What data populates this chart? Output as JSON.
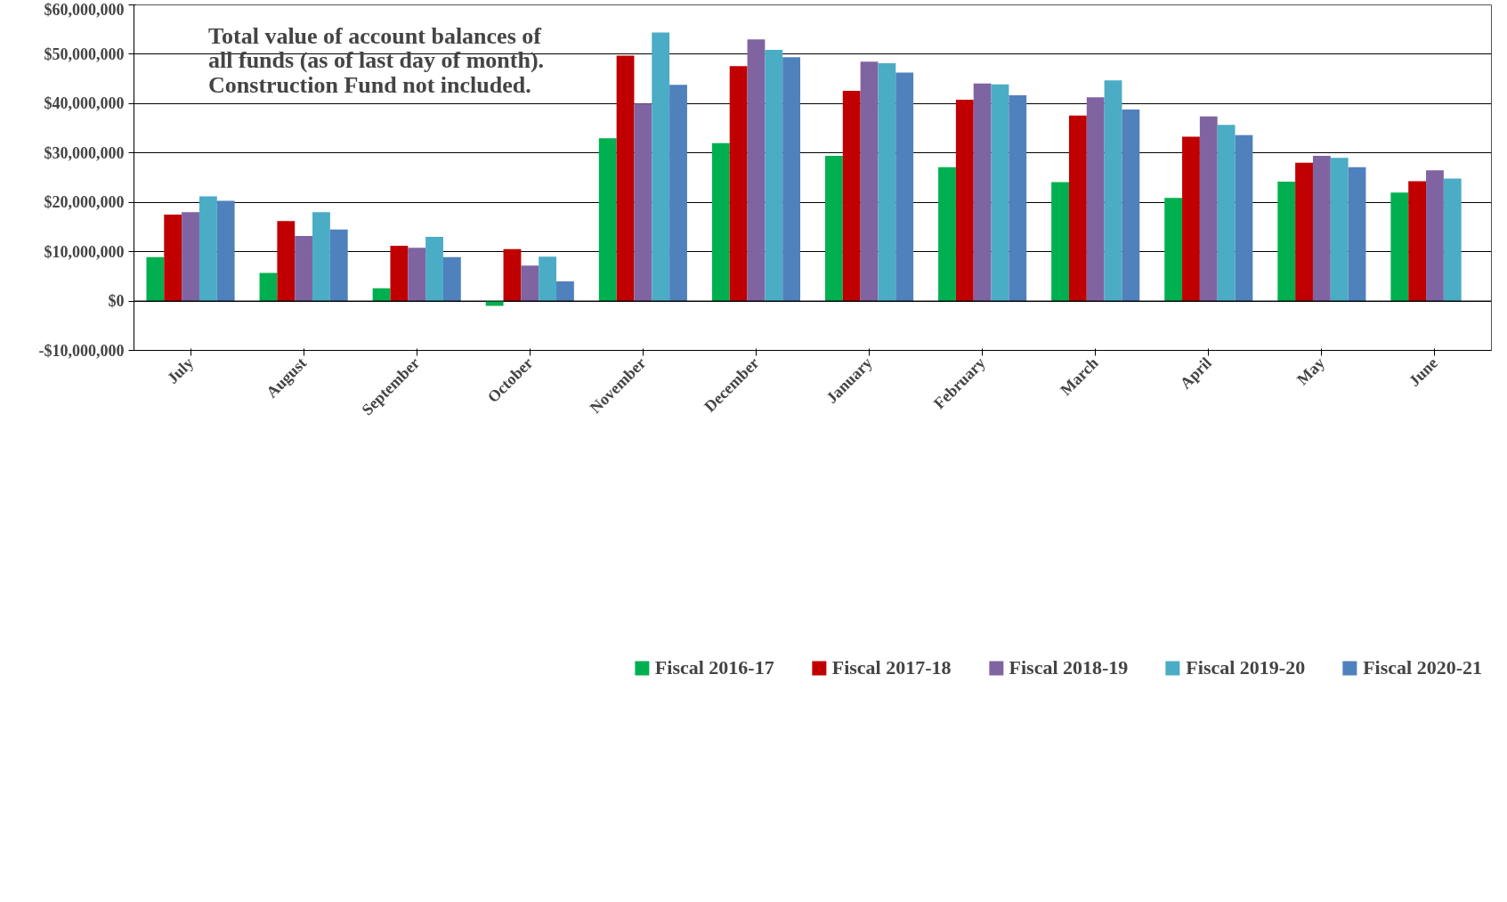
{
  "chart_data": {
    "type": "bar",
    "categories": [
      "July",
      "August",
      "September",
      "October",
      "November",
      "December",
      "January",
      "February",
      "March",
      "April",
      "May",
      "June"
    ],
    "series": [
      {
        "name": "Fiscal 2016-17",
        "color": "#00b050",
        "values": [
          8900000,
          5700000,
          2600000,
          -1000000,
          33000000,
          32000000,
          29400000,
          27100000,
          24100000,
          20900000,
          24200000,
          22000000
        ]
      },
      {
        "name": "Fiscal 2017-18",
        "color": "#c00000",
        "values": [
          17500000,
          16200000,
          11200000,
          10500000,
          49700000,
          47600000,
          42600000,
          40800000,
          37600000,
          33300000,
          28000000,
          24300000
        ]
      },
      {
        "name": "Fiscal 2018-19",
        "color": "#8064a2",
        "values": [
          18000000,
          13200000,
          10800000,
          7200000,
          40000000,
          53000000,
          48500000,
          44100000,
          41300000,
          37400000,
          29400000,
          26500000
        ]
      },
      {
        "name": "Fiscal 2019-20",
        "color": "#4bacc6",
        "values": [
          21200000,
          18000000,
          13000000,
          9000000,
          54400000,
          50900000,
          48200000,
          43900000,
          44700000,
          35700000,
          29000000,
          24800000
        ]
      },
      {
        "name": "Fiscal 2020-21",
        "color": "#4f81bd",
        "values": [
          20300000,
          14500000,
          8900000,
          4000000,
          43800000,
          49400000,
          46300000,
          41700000,
          38800000,
          33600000,
          27100000,
          null
        ]
      }
    ],
    "ylim": [
      -10000000,
      60000000
    ],
    "yticks": [
      {
        "value": -10000000,
        "label": "-$10,000,000"
      },
      {
        "value": 0,
        "label": "$0"
      },
      {
        "value": 10000000,
        "label": "$10,000,000"
      },
      {
        "value": 20000000,
        "label": "$20,000,000"
      },
      {
        "value": 30000000,
        "label": "$30,000,000"
      },
      {
        "value": 40000000,
        "label": "$40,000,000"
      },
      {
        "value": 50000000,
        "label": "$50,000,000"
      },
      {
        "value": 60000000,
        "label": "$60,000,000"
      }
    ],
    "grid": "y",
    "legend": "bottom",
    "annotations": [
      "Total value of account balances of\nall funds (as of last day of month).\nConstruction Fund not included."
    ]
  }
}
